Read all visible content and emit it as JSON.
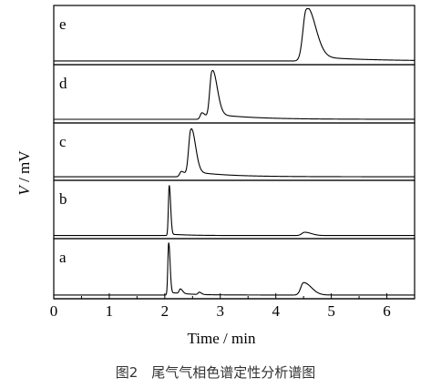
{
  "caption": "图2　尾气气相色谱定性分析谱图",
  "chart_data": {
    "type": "line",
    "xlabel": "Time / min",
    "ylabel_italic": "V",
    "ylabel_unit": " / mV",
    "xlim": [
      0,
      6.5
    ],
    "xticks": [
      0,
      1,
      2,
      3,
      4,
      5,
      6
    ],
    "panels": [
      {
        "label": "e",
        "baseline": 0.05,
        "peaks": [
          {
            "t": 4.55,
            "h": 0.93,
            "rise": 0.06,
            "tail": 0.16,
            "bg": 0.09,
            "bgTail": 0.9
          }
        ]
      },
      {
        "label": "d",
        "baseline": 0.05,
        "peaks": [
          {
            "t": 2.67,
            "h": 0.12,
            "rise": 0.03,
            "tail": 0.06
          },
          {
            "t": 2.85,
            "h": 0.88,
            "rise": 0.04,
            "tail": 0.09,
            "bg": 0.1,
            "bgTail": 0.7
          }
        ]
      },
      {
        "label": "c",
        "baseline": 0.05,
        "peaks": [
          {
            "t": 2.3,
            "h": 0.1,
            "rise": 0.03,
            "tail": 0.06
          },
          {
            "t": 2.47,
            "h": 0.88,
            "rise": 0.04,
            "tail": 0.08,
            "bg": 0.1,
            "bgTail": 0.6
          }
        ]
      },
      {
        "label": "b",
        "baseline": 0.04,
        "peaks": [
          {
            "t": 2.08,
            "h": 0.92,
            "rise": 0.015,
            "tail": 0.025,
            "bg": 0.03,
            "bgTail": 0.3
          },
          {
            "t": 4.52,
            "h": 0.06,
            "rise": 0.05,
            "tail": 0.12
          }
        ]
      },
      {
        "label": "a",
        "baseline": 0.05,
        "peaks": [
          {
            "t": 2.07,
            "h": 0.93,
            "rise": 0.015,
            "tail": 0.025,
            "bg": 0.06,
            "bgTail": 0.3
          },
          {
            "t": 2.28,
            "h": 0.08,
            "rise": 0.02,
            "tail": 0.04
          },
          {
            "t": 2.62,
            "h": 0.04,
            "rise": 0.02,
            "tail": 0.04
          },
          {
            "t": 4.5,
            "h": 0.22,
            "rise": 0.05,
            "tail": 0.14
          }
        ]
      }
    ]
  }
}
